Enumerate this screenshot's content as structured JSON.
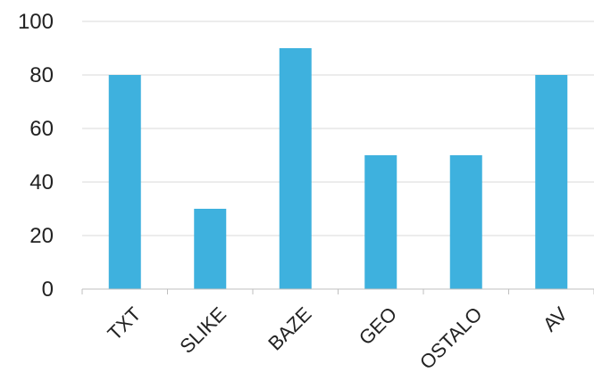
{
  "chart_data": {
    "type": "bar",
    "title": "",
    "xlabel": "",
    "ylabel": "",
    "categories": [
      "TXT",
      "SLIKE",
      "BAZE",
      "GEO",
      "OSTALO",
      "AV"
    ],
    "values": [
      80,
      30,
      90,
      50,
      50,
      80
    ],
    "ylim": [
      0,
      100
    ],
    "yticks": [
      "0",
      "20",
      "40",
      "60",
      "80",
      "100"
    ],
    "grid": true,
    "legend": "none",
    "bar_color": "#3eb1de",
    "x_label_rotation": -45
  }
}
